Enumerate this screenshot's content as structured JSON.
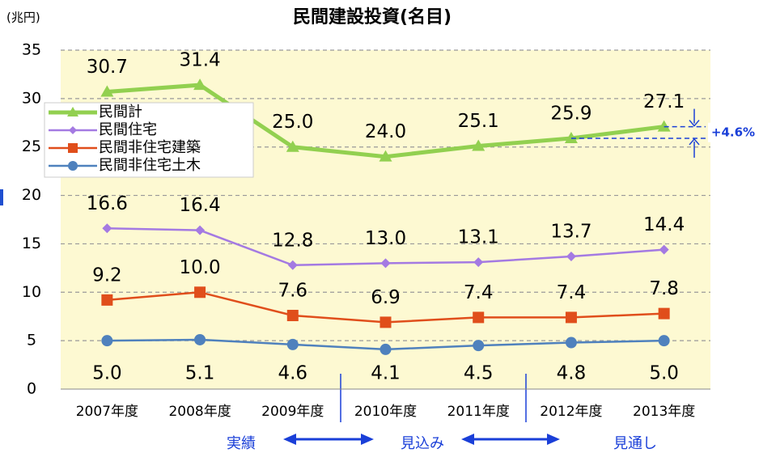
{
  "chart_data": {
    "type": "line",
    "title": "民間建設投資(名目)",
    "unit_label": "(兆円)",
    "categories": [
      "2007年度",
      "2008年度",
      "2009年度",
      "2010年度",
      "2011年度",
      "2012年度",
      "2013年度"
    ],
    "series": [
      {
        "name": "民間計",
        "color": "#92d050",
        "marker": "triangle",
        "values": [
          30.7,
          31.4,
          25.0,
          24.0,
          25.1,
          25.9,
          27.1
        ],
        "value_labels": [
          "30.7",
          "31.4",
          "25.0",
          "24.0",
          "25.1",
          "25.9",
          "27.1"
        ]
      },
      {
        "name": "民間住宅",
        "color": "#a47ae2",
        "marker": "diamond",
        "values": [
          16.6,
          16.4,
          12.8,
          13.0,
          13.1,
          13.7,
          14.4
        ],
        "value_labels": [
          "16.6",
          "16.4",
          "12.8",
          "13.0",
          "13.1",
          "13.7",
          "14.4"
        ]
      },
      {
        "name": "民間非住宅建築",
        "color": "#e04e1b",
        "marker": "square",
        "values": [
          9.2,
          10.0,
          7.6,
          6.9,
          7.4,
          7.4,
          7.8
        ],
        "value_labels": [
          "9.2",
          "10.0",
          "7.6",
          "6.9",
          "7.4",
          "7.4",
          "7.8"
        ]
      },
      {
        "name": "民間非住宅土木",
        "color": "#4f81bd",
        "marker": "circle",
        "values": [
          5.0,
          5.1,
          4.6,
          4.1,
          4.5,
          4.8,
          5.0
        ],
        "value_labels": [
          "5.0",
          "5.1",
          "4.6",
          "4.1",
          "4.5",
          "4.8",
          "5.0"
        ]
      }
    ],
    "ylim": [
      0,
      35
    ],
    "yticks": [
      0,
      5,
      10,
      15,
      20,
      25,
      30,
      35
    ],
    "grid": true,
    "legend": "upper left",
    "annotations": {
      "change": "+4.6%",
      "actual": "実績",
      "estimate": "見込み",
      "forecast": "見通し"
    }
  }
}
